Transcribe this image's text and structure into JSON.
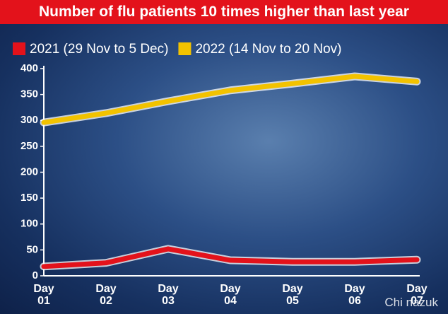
{
  "chart_data": {
    "type": "line",
    "title": "Number of flu patients 10 times higher than last year",
    "categories": [
      "Day\n01",
      "Day\n02",
      "Day\n03",
      "Day\n04",
      "Day\n05",
      "Day\n06",
      "Day\n07"
    ],
    "series": [
      {
        "name": "2021 (29 Nov to 5 Dec)",
        "color": "#e3121b",
        "values": [
          18,
          25,
          52,
          30,
          27,
          27,
          31
        ]
      },
      {
        "name": "2022 (14 Nov to 20 Nov)",
        "color": "#f2c200",
        "values": [
          296,
          314,
          337,
          358,
          371,
          385,
          375
        ]
      }
    ],
    "ylim": [
      0,
      400
    ],
    "yticks": [
      0,
      50,
      100,
      150,
      200,
      250,
      300,
      350,
      400
    ],
    "watermark": "Chi nazuk"
  }
}
